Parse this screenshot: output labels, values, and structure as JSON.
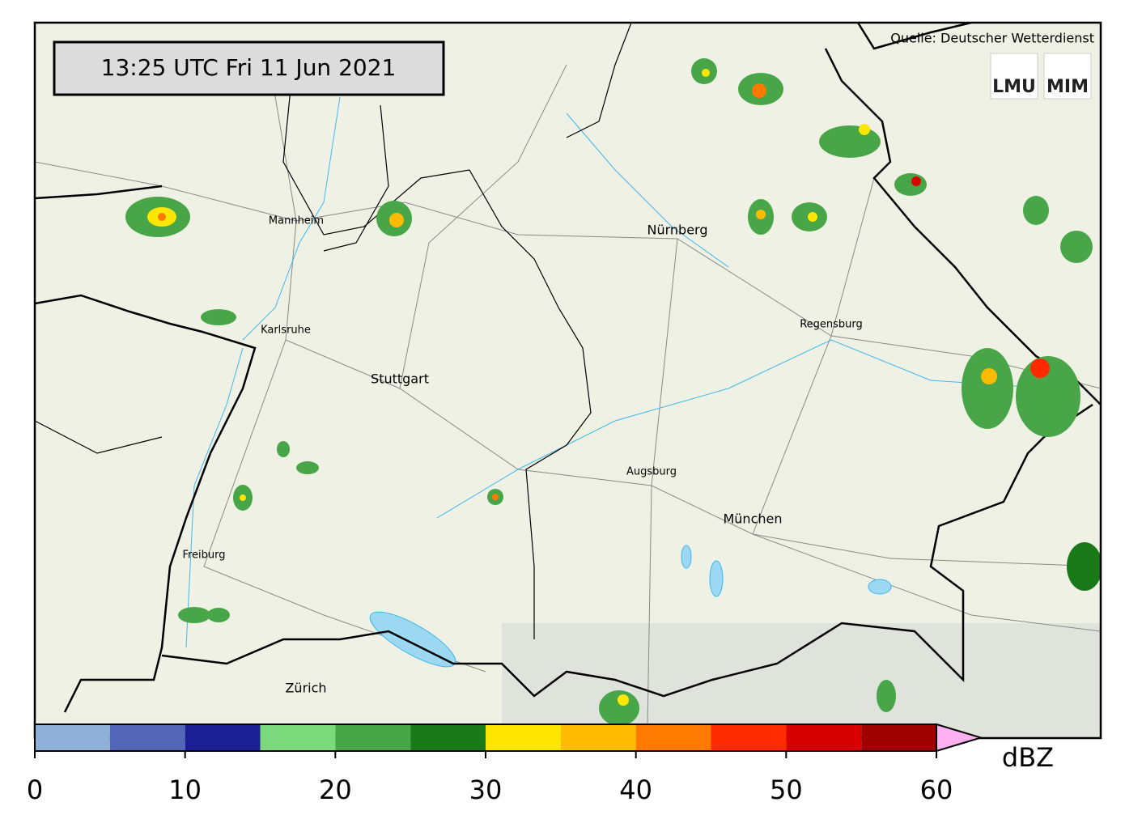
{
  "timestamp": "13:25 UTC  Fri 11 Jun 2021",
  "source": "Quelle: Deutscher Wetterdienst",
  "logos": [
    "LMU",
    "MIM"
  ],
  "cities": [
    "Mannheim",
    "Nürnberg",
    "Karlsruhe",
    "Regensburg",
    "Stuttgart",
    "Augsburg",
    "München",
    "Freiburg",
    "Zürich"
  ],
  "colorbar": {
    "label": "dBZ",
    "bounds": [
      0,
      5,
      10,
      15,
      20,
      25,
      30,
      35,
      40,
      45,
      50,
      55,
      60
    ],
    "colors": [
      "#8fb1d8",
      "#5466b8",
      "#1c1e96",
      "#7bd87b",
      "#48a648",
      "#1a7a1a",
      "#ffe600",
      "#ffbb00",
      "#ff7a00",
      "#ff2a00",
      "#d90000",
      "#a00000"
    ],
    "extend_color": "#ffb0f0",
    "ticks": [
      0,
      10,
      20,
      30,
      40,
      50,
      60
    ]
  }
}
